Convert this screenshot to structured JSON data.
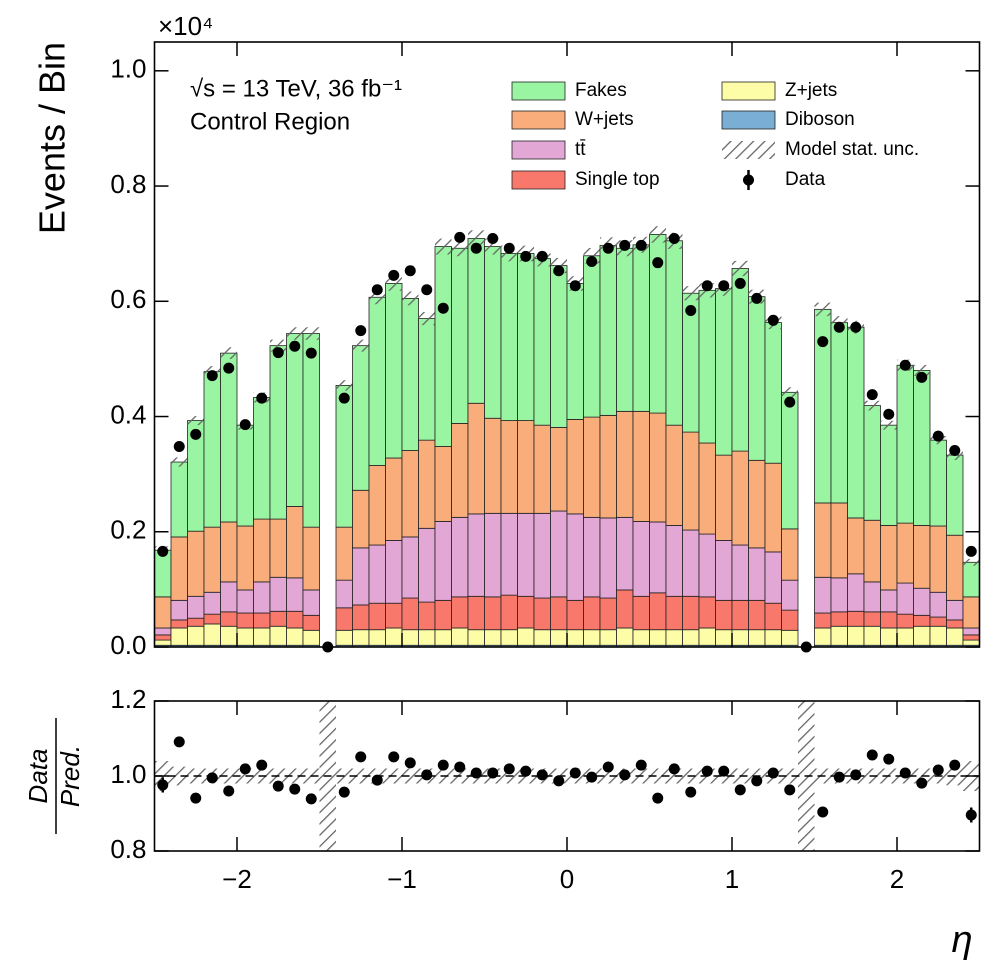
{
  "chart_data": {
    "type": "stacked_histogram",
    "y_multiplier": "×10⁴",
    "ylabel": "Events / Bin",
    "xlabel": "η",
    "annotations": [
      "√s = 13 TeV, 36 fb⁻¹",
      "Control Region"
    ],
    "bins": [
      -2.5,
      -2.4,
      -2.3,
      -2.2,
      -2.1,
      -2.0,
      -1.9,
      -1.8,
      -1.7,
      -1.6,
      -1.5,
      -1.4,
      -1.3,
      -1.2,
      -1.1,
      -1.0,
      -0.9,
      -0.8,
      -0.7,
      -0.6,
      -0.5,
      -0.4,
      -0.3,
      -0.2,
      -0.1,
      0.0,
      0.1,
      0.2,
      0.3,
      0.4,
      0.5,
      0.6,
      0.7,
      0.8,
      0.9,
      1.0,
      1.1,
      1.2,
      1.3,
      1.4,
      1.5,
      1.6,
      1.7,
      1.8,
      1.9,
      2.0,
      2.1,
      2.2,
      2.3,
      2.4,
      2.5
    ],
    "xlim": [
      -2.5,
      2.5
    ],
    "xticks": [
      {
        "value": -2,
        "label": "−2"
      },
      {
        "value": -1,
        "label": "−1"
      },
      0,
      1,
      2
    ],
    "ylim": [
      0,
      1.05
    ],
    "yticks": [
      {
        "value": 0,
        "label": "0.0"
      },
      0.2,
      0.4,
      0.6,
      0.8,
      {
        "value": 1,
        "label": "1.0"
      }
    ],
    "series": [
      {
        "name": "Fakes",
        "color": "#9af5a2",
        "values": [
          0.081,
          0.13,
          0.192,
          0.27,
          0.293,
          0.175,
          0.211,
          0.301,
          0.3,
          0.336,
          0,
          0.246,
          0.251,
          0.292,
          0.303,
          0.264,
          0.211,
          0.347,
          0.304,
          0.286,
          0.298,
          0.29,
          0.29,
          0.289,
          0.281,
          0.236,
          0.28,
          0.295,
          0.283,
          0.289,
          0.31,
          0.32,
          0.241,
          0.265,
          0.289,
          0.317,
          0.284,
          0.244,
          0.237,
          0,
          0.336,
          0.313,
          0.331,
          0.199,
          0.174,
          0.274,
          0.269,
          0.149,
          0.139,
          0.06
        ]
      },
      {
        "name": "W+jets",
        "color": "#f8ad7a",
        "values": [
          0.054,
          0.11,
          0.113,
          0.113,
          0.104,
          0.111,
          0.109,
          0.101,
          0.124,
          0.109,
          0,
          0.092,
          0.1,
          0.138,
          0.143,
          0.15,
          0.153,
          0.13,
          0.163,
          0.192,
          0.165,
          0.161,
          0.161,
          0.153,
          0.145,
          0.164,
          0.174,
          0.178,
          0.184,
          0.191,
          0.189,
          0.174,
          0.17,
          0.158,
          0.148,
          0.163,
          0.152,
          0.154,
          0.089,
          0,
          0.129,
          0.13,
          0.097,
          0.107,
          0.112,
          0.104,
          0.109,
          0.115,
          0.113,
          0.054
        ]
      },
      {
        "name": "tt̄",
        "color": "#e3a7d5",
        "values": [
          0.012,
          0.034,
          0.038,
          0.038,
          0.052,
          0.04,
          0.054,
          0.059,
          0.058,
          0.044,
          0,
          0.048,
          0.099,
          0.101,
          0.109,
          0.106,
          0.128,
          0.137,
          0.138,
          0.143,
          0.145,
          0.142,
          0.144,
          0.147,
          0.149,
          0.15,
          0.138,
          0.139,
          0.126,
          0.13,
          0.123,
          0.123,
          0.115,
          0.109,
          0.104,
          0.096,
          0.091,
          0.089,
          0.052,
          0,
          0.062,
          0.059,
          0.065,
          0.052,
          0.038,
          0.054,
          0.047,
          0.043,
          0.034,
          0.012
        ]
      },
      {
        "name": "Single top",
        "color": "#f8796c",
        "values": [
          0.009,
          0.014,
          0.014,
          0.017,
          0.025,
          0.026,
          0.026,
          0.026,
          0.029,
          0.026,
          0,
          0.039,
          0.043,
          0.046,
          0.043,
          0.055,
          0.048,
          0.051,
          0.054,
          0.058,
          0.057,
          0.06,
          0.055,
          0.055,
          0.057,
          0.051,
          0.057,
          0.055,
          0.066,
          0.058,
          0.064,
          0.058,
          0.058,
          0.054,
          0.051,
          0.051,
          0.051,
          0.046,
          0.035,
          0,
          0.026,
          0.025,
          0.026,
          0.025,
          0.028,
          0.024,
          0.019,
          0.016,
          0.014,
          0.009
        ]
      },
      {
        "name": "Z+jets",
        "color": "#fdfda8",
        "values": [
          0.009,
          0.03,
          0.033,
          0.037,
          0.033,
          0.03,
          0.03,
          0.033,
          0.03,
          0.026,
          0,
          0.026,
          0.027,
          0.027,
          0.03,
          0.027,
          0.027,
          0.027,
          0.03,
          0.027,
          0.027,
          0.027,
          0.03,
          0.027,
          0.027,
          0.027,
          0.027,
          0.027,
          0.03,
          0.027,
          0.027,
          0.027,
          0.027,
          0.03,
          0.027,
          0.027,
          0.027,
          0.027,
          0.026,
          0,
          0.03,
          0.033,
          0.033,
          0.033,
          0.03,
          0.03,
          0.033,
          0.033,
          0.03,
          0.009
        ]
      },
      {
        "name": "Diboson",
        "color": "#7aaed4",
        "values": [
          0.003,
          0.003,
          0.003,
          0.003,
          0.003,
          0.003,
          0.003,
          0.003,
          0.003,
          0.003,
          0,
          0.003,
          0.003,
          0.003,
          0.003,
          0.003,
          0.003,
          0.003,
          0.003,
          0.003,
          0.003,
          0.003,
          0.003,
          0.003,
          0.003,
          0.003,
          0.003,
          0.003,
          0.003,
          0.003,
          0.003,
          0.003,
          0.003,
          0.003,
          0.003,
          0.003,
          0.003,
          0.003,
          0.003,
          0,
          0.003,
          0.003,
          0.003,
          0.003,
          0.003,
          0.003,
          0.003,
          0.003,
          0.003,
          0.003
        ]
      }
    ],
    "stat_unc": {
      "name": "Model stat. unc.",
      "values": [
        0.04,
        0.025,
        0.02,
        0.02,
        0.02,
        0.02,
        0.02,
        0.02,
        0.02,
        0.02,
        null,
        0.02,
        0.02,
        0.02,
        0.02,
        0.02,
        0.02,
        0.02,
        0.02,
        0.02,
        0.02,
        0.02,
        0.02,
        0.02,
        0.02,
        0.02,
        0.02,
        0.02,
        0.02,
        0.02,
        0.02,
        0.02,
        0.02,
        0.02,
        0.02,
        0.02,
        0.02,
        0.02,
        0.02,
        null,
        0.02,
        0.02,
        0.02,
        0.02,
        0.02,
        0.02,
        0.02,
        0.02,
        0.025,
        0.04
      ]
    },
    "data": {
      "name": "Data",
      "color": "#000000",
      "values": [
        0.166,
        0.348,
        0.369,
        0.471,
        0.484,
        0.386,
        0.432,
        0.511,
        0.522,
        0.51,
        0,
        0.432,
        0.549,
        0.62,
        0.645,
        0.653,
        0.62,
        0.588,
        0.711,
        0.692,
        0.709,
        0.692,
        0.678,
        0.678,
        0.653,
        0.627,
        0.669,
        0.692,
        0.697,
        0.697,
        0.667,
        0.709,
        0.584,
        0.627,
        0.627,
        0.631,
        0.605,
        0.567,
        0.425,
        0,
        0.53,
        0.555,
        0.555,
        0.438,
        0.404,
        0.489,
        0.468,
        0.366,
        0.341,
        0.166
      ]
    },
    "ratio": {
      "ylabel_numerator": "Data",
      "ylabel_denominator": "Pred.",
      "ylim": [
        0.8,
        1.2
      ],
      "yticks": [
        0.8,
        {
          "value": 1,
          "label": "1.0"
        },
        1.2
      ],
      "values": [
        0.976,
        1.091,
        0.941,
        0.995,
        0.96,
        1.019,
        1.029,
        0.973,
        0.965,
        0.939,
        null,
        0.957,
        1.051,
        0.989,
        1.051,
        1.035,
        1.003,
        1.029,
        1.024,
        1.008,
        1.008,
        1.019,
        1.013,
        1.003,
        0.987,
        1.008,
        0.997,
        1.024,
        1.003,
        1.029,
        0.941,
        1.019,
        0.957,
        1.013,
        1.013,
        0.963,
        0.987,
        1.008,
        0.963,
        null,
        0.904,
        0.997,
        1.003,
        1.056,
        1.045,
        1.008,
        0.981,
        1.016,
        1.029,
        0.896
      ],
      "errors": [
        0.02,
        0.012,
        0.012,
        0.012,
        0.012,
        0.012,
        0.012,
        0.012,
        0.012,
        0.012,
        null,
        0.012,
        0.012,
        0.012,
        0.012,
        0.012,
        0.012,
        0.012,
        0.012,
        0.012,
        0.012,
        0.012,
        0.012,
        0.012,
        0.012,
        0.012,
        0.012,
        0.012,
        0.012,
        0.012,
        0.012,
        0.012,
        0.012,
        0.012,
        0.012,
        0.012,
        0.012,
        0.012,
        0.012,
        null,
        0.012,
        0.012,
        0.012,
        0.012,
        0.012,
        0.012,
        0.012,
        0.012,
        0.012,
        0.02
      ]
    }
  }
}
